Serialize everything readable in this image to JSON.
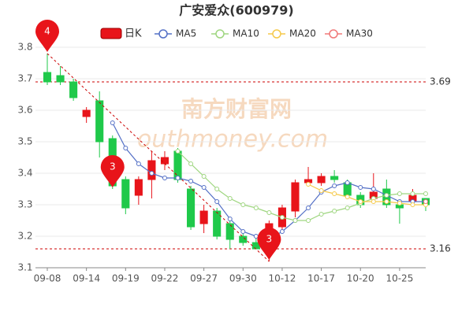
{
  "chart_data": {
    "type": "candlestick",
    "title": "广安爱众(600979)",
    "categories": [
      "09-08",
      null,
      null,
      "09-14",
      null,
      null,
      "09-19",
      null,
      null,
      "09-22",
      null,
      null,
      "09-27",
      null,
      null,
      "09-30",
      null,
      null,
      "10-12",
      null,
      null,
      "10-17",
      null,
      null,
      "10-20",
      null,
      null,
      "10-25",
      null,
      null
    ],
    "ohlc": {
      "name": "日K",
      "up_color": "#e8141a",
      "down_color": "#1fc94a",
      "open": [
        3.72,
        3.71,
        3.69,
        3.58,
        3.63,
        3.51,
        3.38,
        3.33,
        3.38,
        3.43,
        3.47,
        3.35,
        3.24,
        3.28,
        3.24,
        3.2,
        3.18,
        3.17,
        3.23,
        3.28,
        3.37,
        3.37,
        3.39,
        3.37,
        3.33,
        3.32,
        3.35,
        3.3,
        3.31,
        3.32
      ],
      "close": [
        3.69,
        3.69,
        3.64,
        3.6,
        3.5,
        3.36,
        3.29,
        3.38,
        3.44,
        3.45,
        3.38,
        3.23,
        3.28,
        3.2,
        3.19,
        3.18,
        3.16,
        3.24,
        3.29,
        3.37,
        3.38,
        3.39,
        3.38,
        3.33,
        3.3,
        3.34,
        3.3,
        3.29,
        3.33,
        3.3
      ],
      "high": [
        3.78,
        3.74,
        3.7,
        3.61,
        3.66,
        3.52,
        3.39,
        3.39,
        3.47,
        3.47,
        3.48,
        3.36,
        3.3,
        3.29,
        3.25,
        3.22,
        3.2,
        3.25,
        3.3,
        3.38,
        3.42,
        3.4,
        3.41,
        3.38,
        3.34,
        3.4,
        3.38,
        3.31,
        3.35,
        3.32
      ],
      "low": [
        3.68,
        3.68,
        3.63,
        3.56,
        3.45,
        3.35,
        3.27,
        3.3,
        3.32,
        3.41,
        3.37,
        3.22,
        3.21,
        3.19,
        3.16,
        3.17,
        3.16,
        3.12,
        3.21,
        3.26,
        3.36,
        3.36,
        3.37,
        3.32,
        3.29,
        3.31,
        3.29,
        3.24,
        3.3,
        3.28
      ]
    },
    "series": [
      {
        "name": "MA5",
        "color": "#5470c6",
        "values": [
          null,
          null,
          null,
          null,
          null,
          3.56,
          3.48,
          3.43,
          3.4,
          3.385,
          3.385,
          3.375,
          3.355,
          3.31,
          3.255,
          3.215,
          3.2,
          3.19,
          3.215,
          3.25,
          3.29,
          3.34,
          3.36,
          3.37,
          3.355,
          3.35,
          3.33,
          3.31,
          3.31,
          3.31
        ]
      },
      {
        "name": "MA10",
        "color": "#9fd680",
        "values": [
          null,
          null,
          null,
          null,
          null,
          null,
          null,
          null,
          null,
          null,
          3.47,
          3.43,
          3.39,
          3.35,
          3.32,
          3.3,
          3.29,
          3.275,
          3.26,
          3.25,
          3.25,
          3.27,
          3.28,
          3.29,
          3.305,
          3.32,
          3.33,
          3.335,
          3.335,
          3.335
        ]
      },
      {
        "name": "MA20",
        "color": "#f5c94a",
        "values": [
          null,
          null,
          null,
          null,
          null,
          null,
          null,
          null,
          null,
          null,
          null,
          null,
          null,
          null,
          null,
          null,
          null,
          null,
          null,
          null,
          3.365,
          3.345,
          3.335,
          3.325,
          3.31,
          3.31,
          3.31,
          3.305,
          3.3,
          3.3
        ]
      },
      {
        "name": "MA30",
        "color": "#f07878",
        "values": [
          null,
          null,
          null,
          null,
          null,
          null,
          null,
          null,
          null,
          null,
          null,
          null,
          null,
          null,
          null,
          null,
          null,
          null,
          null,
          null,
          null,
          null,
          null,
          null,
          null,
          null,
          null,
          null,
          null,
          3.31
        ]
      }
    ],
    "ylim": [
      3.1,
      3.8
    ],
    "yticks": [
      3.1,
      3.2,
      3.3,
      3.4,
      3.5,
      3.6,
      3.7,
      3.8
    ],
    "grid": true,
    "ref_lines": [
      3.69,
      3.16
    ],
    "markers": [
      "4",
      "3",
      "3"
    ],
    "watermark": [
      "南方财富网",
      "outhmoney.com"
    ]
  }
}
